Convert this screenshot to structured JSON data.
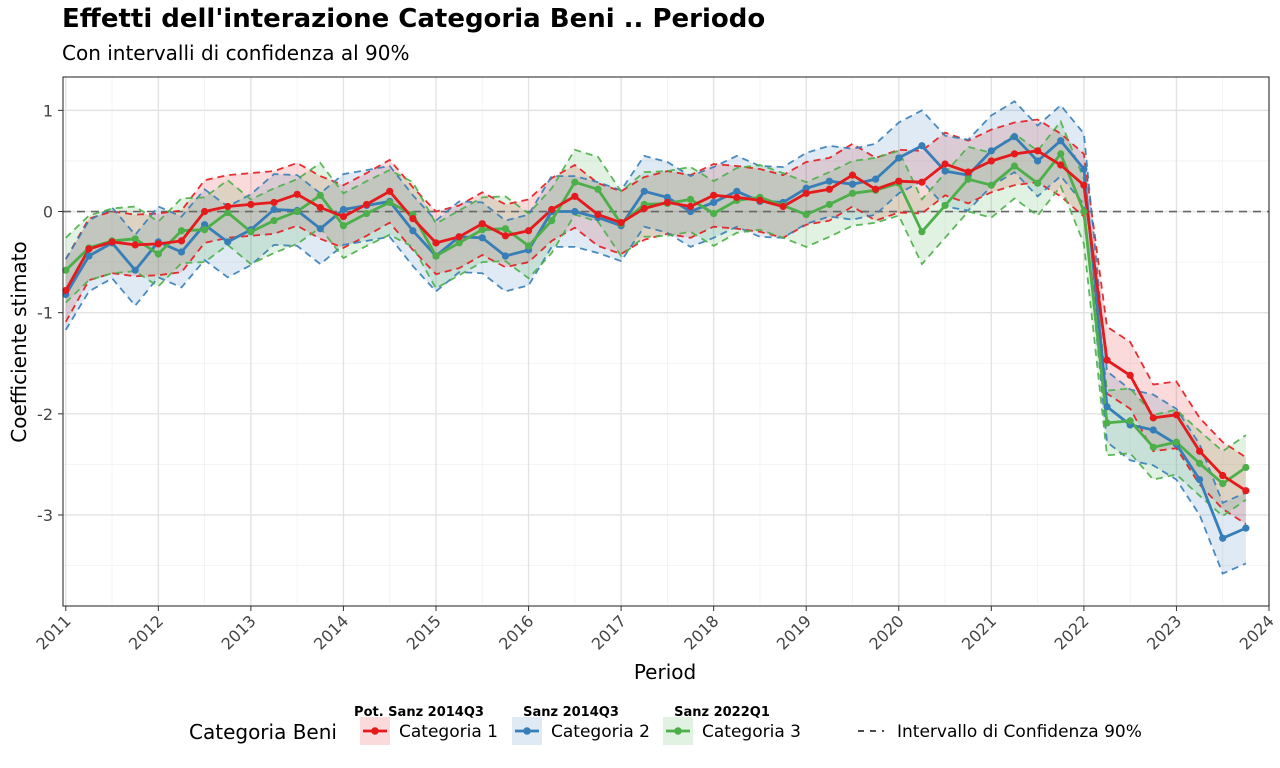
{
  "chart_data": {
    "type": "line",
    "title": "Effetti dell'interazione Categoria Beni .. Periodo",
    "subtitle": "Con intervalli di confidenza al 90%",
    "xlabel": "Period",
    "ylabel": "Coefficiente stimato",
    "xlim": [
      2010.97,
      2024.0
    ],
    "ylim": [
      -3.9,
      1.33
    ],
    "x_ticks": [
      "2011",
      "2012",
      "2013",
      "2014",
      "2015",
      "2016",
      "2017",
      "2018",
      "2019",
      "2020",
      "2021",
      "2022",
      "2023",
      "2024"
    ],
    "y_ticks": [
      "1",
      "0",
      "-1",
      "-2",
      "-3"
    ],
    "reference_line": {
      "y": 0,
      "style": "dashed"
    },
    "grid": true,
    "legend": {
      "position": "bottom",
      "title": "Categoria Beni",
      "ci_label": "Intervallo di Confidenza 90%",
      "items": [
        {
          "name": "Categoria 1",
          "note": "Pot. Sanz 2014Q3"
        },
        {
          "name": "Categoria 2",
          "note": "Sanz 2014Q3"
        },
        {
          "name": "Categoria 3",
          "note": "Sanz 2022Q1"
        }
      ]
    },
    "x": [
      2011.0,
      2011.25,
      2011.5,
      2011.75,
      2012.0,
      2012.25,
      2012.5,
      2012.75,
      2013.0,
      2013.25,
      2013.5,
      2013.75,
      2014.0,
      2014.25,
      2014.5,
      2014.75,
      2015.0,
      2015.25,
      2015.5,
      2015.75,
      2016.0,
      2016.25,
      2016.5,
      2016.75,
      2017.0,
      2017.25,
      2017.5,
      2017.75,
      2018.0,
      2018.25,
      2018.5,
      2018.75,
      2019.0,
      2019.25,
      2019.5,
      2019.75,
      2020.0,
      2020.25,
      2020.5,
      2020.75,
      2021.0,
      2021.25,
      2021.5,
      2021.75,
      2022.0,
      2022.25,
      2022.5,
      2022.75,
      2023.0,
      2023.25,
      2023.5,
      2023.75
    ],
    "series": [
      {
        "name": "Categoria 1",
        "color": "#e41a1c",
        "values": [
          -0.78,
          -0.37,
          -0.3,
          -0.33,
          -0.32,
          -0.29,
          0.0,
          0.05,
          0.07,
          0.09,
          0.17,
          0.04,
          -0.05,
          0.07,
          0.2,
          -0.07,
          -0.31,
          -0.25,
          -0.12,
          -0.24,
          -0.19,
          0.02,
          0.15,
          -0.03,
          -0.11,
          0.03,
          0.09,
          0.05,
          0.16,
          0.14,
          0.11,
          0.05,
          0.18,
          0.22,
          0.36,
          0.22,
          0.3,
          0.29,
          0.47,
          0.39,
          0.5,
          0.57,
          0.6,
          0.46,
          0.26,
          -1.47,
          -1.62,
          -2.04,
          -2.01,
          -2.37,
          -2.61,
          -2.76
        ],
        "upper": [
          -0.47,
          -0.07,
          0.0,
          -0.03,
          -0.02,
          0.01,
          0.31,
          0.36,
          0.38,
          0.4,
          0.48,
          0.35,
          0.26,
          0.38,
          0.51,
          0.24,
          0.0,
          0.06,
          0.19,
          0.07,
          0.12,
          0.33,
          0.46,
          0.28,
          0.2,
          0.34,
          0.4,
          0.36,
          0.47,
          0.45,
          0.42,
          0.36,
          0.49,
          0.53,
          0.67,
          0.53,
          0.61,
          0.6,
          0.78,
          0.7,
          0.81,
          0.88,
          0.91,
          0.77,
          0.57,
          -1.14,
          -1.29,
          -1.71,
          -1.68,
          -2.04,
          -2.28,
          -2.43
        ],
        "lower": [
          -1.09,
          -0.68,
          -0.61,
          -0.64,
          -0.63,
          -0.6,
          -0.31,
          -0.26,
          -0.24,
          -0.22,
          -0.14,
          -0.27,
          -0.36,
          -0.24,
          -0.11,
          -0.38,
          -0.62,
          -0.56,
          -0.43,
          -0.55,
          -0.5,
          -0.29,
          -0.16,
          -0.34,
          -0.42,
          -0.28,
          -0.22,
          -0.26,
          -0.15,
          -0.17,
          -0.2,
          -0.26,
          -0.13,
          -0.09,
          0.05,
          -0.09,
          -0.01,
          -0.02,
          0.16,
          0.08,
          0.19,
          0.26,
          0.29,
          0.15,
          -0.05,
          -1.8,
          -1.95,
          -2.37,
          -2.34,
          -2.7,
          -2.94,
          -3.09
        ]
      },
      {
        "name": "Categoria 2",
        "color": "#377eb8",
        "values": [
          -0.82,
          -0.44,
          -0.31,
          -0.58,
          -0.3,
          -0.4,
          -0.13,
          -0.3,
          -0.18,
          0.02,
          0.01,
          -0.17,
          0.02,
          0.06,
          0.1,
          -0.19,
          -0.44,
          -0.25,
          -0.26,
          -0.44,
          -0.38,
          0.0,
          0.0,
          -0.06,
          -0.14,
          0.2,
          0.14,
          0.0,
          0.09,
          0.2,
          0.1,
          0.09,
          0.23,
          0.3,
          0.27,
          0.32,
          0.53,
          0.65,
          0.4,
          0.36,
          0.6,
          0.74,
          0.5,
          0.7,
          0.42,
          -1.93,
          -2.11,
          -2.16,
          -2.3,
          -2.65,
          -3.23,
          -3.13
        ],
        "upper": [
          -0.47,
          -0.09,
          0.04,
          -0.23,
          0.05,
          -0.05,
          0.22,
          0.05,
          0.17,
          0.37,
          0.36,
          0.18,
          0.37,
          0.41,
          0.45,
          0.16,
          -0.09,
          0.1,
          0.09,
          -0.09,
          -0.03,
          0.35,
          0.35,
          0.29,
          0.21,
          0.55,
          0.49,
          0.35,
          0.44,
          0.55,
          0.45,
          0.44,
          0.58,
          0.65,
          0.62,
          0.67,
          0.88,
          1.0,
          0.75,
          0.71,
          0.95,
          1.09,
          0.85,
          1.05,
          0.77,
          -1.58,
          -1.76,
          -1.81,
          -1.95,
          -2.3,
          -2.88,
          -2.78
        ],
        "lower": [
          -1.17,
          -0.79,
          -0.66,
          -0.93,
          -0.65,
          -0.75,
          -0.48,
          -0.65,
          -0.53,
          -0.33,
          -0.34,
          -0.52,
          -0.33,
          -0.29,
          -0.25,
          -0.54,
          -0.79,
          -0.6,
          -0.61,
          -0.79,
          -0.73,
          -0.35,
          -0.35,
          -0.41,
          -0.49,
          -0.15,
          -0.21,
          -0.35,
          -0.26,
          -0.15,
          -0.25,
          -0.26,
          -0.12,
          -0.05,
          -0.08,
          -0.03,
          0.18,
          0.3,
          0.05,
          0.01,
          0.25,
          0.39,
          0.15,
          0.35,
          0.07,
          -2.28,
          -2.46,
          -2.51,
          -2.65,
          -3.0,
          -3.58,
          -3.48
        ]
      },
      {
        "name": "Categoria 3",
        "color": "#4daf4a",
        "values": [
          -0.58,
          -0.36,
          -0.29,
          -0.27,
          -0.42,
          -0.19,
          -0.18,
          -0.01,
          -0.2,
          -0.09,
          0.0,
          0.16,
          -0.14,
          -0.02,
          0.09,
          -0.03,
          -0.44,
          -0.31,
          -0.18,
          -0.17,
          -0.34,
          -0.09,
          0.29,
          0.22,
          -0.12,
          0.07,
          0.08,
          0.12,
          -0.02,
          0.11,
          0.14,
          0.06,
          -0.03,
          0.07,
          0.18,
          0.21,
          0.28,
          -0.2,
          0.06,
          0.32,
          0.26,
          0.45,
          0.28,
          0.57,
          0.0,
          -2.09,
          -2.07,
          -2.33,
          -2.28,
          -2.49,
          -2.69,
          -2.53
        ],
        "upper": [
          -0.26,
          -0.04,
          0.03,
          0.05,
          -0.1,
          0.13,
          0.14,
          0.31,
          0.12,
          0.23,
          0.32,
          0.48,
          0.18,
          0.3,
          0.41,
          0.29,
          -0.12,
          0.01,
          0.14,
          0.15,
          -0.02,
          0.23,
          0.61,
          0.54,
          0.2,
          0.39,
          0.4,
          0.44,
          0.3,
          0.43,
          0.46,
          0.38,
          0.29,
          0.39,
          0.5,
          0.53,
          0.6,
          0.12,
          0.38,
          0.64,
          0.58,
          0.77,
          0.6,
          0.89,
          0.32,
          -1.77,
          -1.75,
          -2.01,
          -1.96,
          -2.17,
          -2.37,
          -2.21
        ],
        "lower": [
          -0.9,
          -0.68,
          -0.61,
          -0.59,
          -0.74,
          -0.51,
          -0.5,
          -0.33,
          -0.52,
          -0.41,
          -0.32,
          -0.16,
          -0.46,
          -0.34,
          -0.23,
          -0.35,
          -0.76,
          -0.63,
          -0.5,
          -0.49,
          -0.66,
          -0.41,
          -0.03,
          -0.1,
          -0.44,
          -0.25,
          -0.24,
          -0.2,
          -0.34,
          -0.21,
          -0.18,
          -0.26,
          -0.35,
          -0.25,
          -0.14,
          -0.11,
          -0.04,
          -0.52,
          -0.26,
          0.0,
          -0.06,
          0.13,
          -0.04,
          0.25,
          -0.32,
          -2.41,
          -2.39,
          -2.65,
          -2.6,
          -2.81,
          -3.01,
          -2.85
        ]
      }
    ]
  }
}
